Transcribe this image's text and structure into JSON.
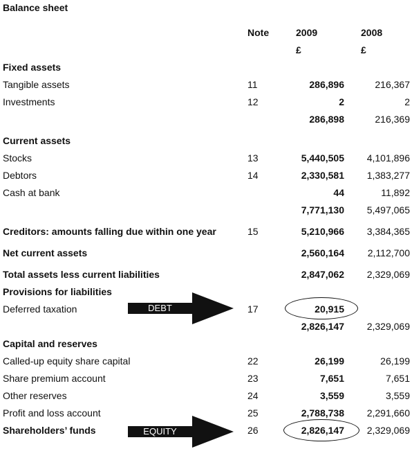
{
  "title": "Balance sheet",
  "columns": {
    "note": "Note",
    "y2009": "2009",
    "y2008": "2008",
    "unit_2009": "£",
    "unit_2008": "£"
  },
  "rows": [
    {
      "label": "Fixed assets",
      "note": "",
      "v2009": "",
      "v2008": "",
      "bold": true
    },
    {
      "label": "Tangible assets",
      "note": "11",
      "v2009": "286,896",
      "v2008": "216,367"
    },
    {
      "label": "Investments",
      "note": "12",
      "v2009": "2",
      "v2008": "2"
    },
    {
      "label": "",
      "note": "",
      "v2009": "286,898",
      "v2008": "216,369"
    },
    {
      "label": "Current assets",
      "note": "",
      "v2009": "",
      "v2008": "",
      "bold": true
    },
    {
      "label": "Stocks",
      "note": "13",
      "v2009": "5,440,505",
      "v2008": "4,101,896"
    },
    {
      "label": "Debtors",
      "note": "14",
      "v2009": "2,330,581",
      "v2008": "1,383,277"
    },
    {
      "label": "Cash at bank",
      "note": "",
      "v2009": "44",
      "v2008": "11,892"
    },
    {
      "label": "",
      "note": "",
      "v2009": "7,771,130",
      "v2008": "5,497,065"
    },
    {
      "label": "Creditors: amounts falling due within one year",
      "note": "15",
      "v2009": "5,210,966",
      "v2008": "3,384,365",
      "bold": true
    },
    {
      "label": "Net current assets",
      "note": "",
      "v2009": "2,560,164",
      "v2008": "2,112,700",
      "bold": true
    },
    {
      "label": "Total assets less current liabilities",
      "note": "",
      "v2009": "2,847,062",
      "v2008": "2,329,069",
      "bold": true
    },
    {
      "label": "Provisions for liabilities",
      "note": "",
      "v2009": "",
      "v2008": "",
      "bold": true
    },
    {
      "label": "Deferred taxation",
      "note": "17",
      "v2009": "20,915",
      "v2008": ""
    },
    {
      "label": "",
      "note": "",
      "v2009": "2,826,147",
      "v2008": "2,329,069"
    },
    {
      "label": "Capital and reserves",
      "note": "",
      "v2009": "",
      "v2008": "",
      "bold": true
    },
    {
      "label": "Called-up equity share capital",
      "note": "22",
      "v2009": "26,199",
      "v2008": "26,199"
    },
    {
      "label": "Share premium account",
      "note": "23",
      "v2009": "7,651",
      "v2008": "7,651"
    },
    {
      "label": "Other reserves",
      "note": "24",
      "v2009": "3,559",
      "v2008": "3,559"
    },
    {
      "label": "Profit and loss account",
      "note": "25",
      "v2009": "2,788,738",
      "v2008": "2,291,660"
    },
    {
      "label": "Shareholders’ funds",
      "note": "26",
      "v2009": "2,826,147",
      "v2008": "2,329,069",
      "bold": true
    }
  ],
  "annotations": {
    "debt_label": "DEBT",
    "equity_label": "EQUITY"
  },
  "colors": {
    "arrow": "#111111",
    "arrow_text": "#ffffff"
  }
}
